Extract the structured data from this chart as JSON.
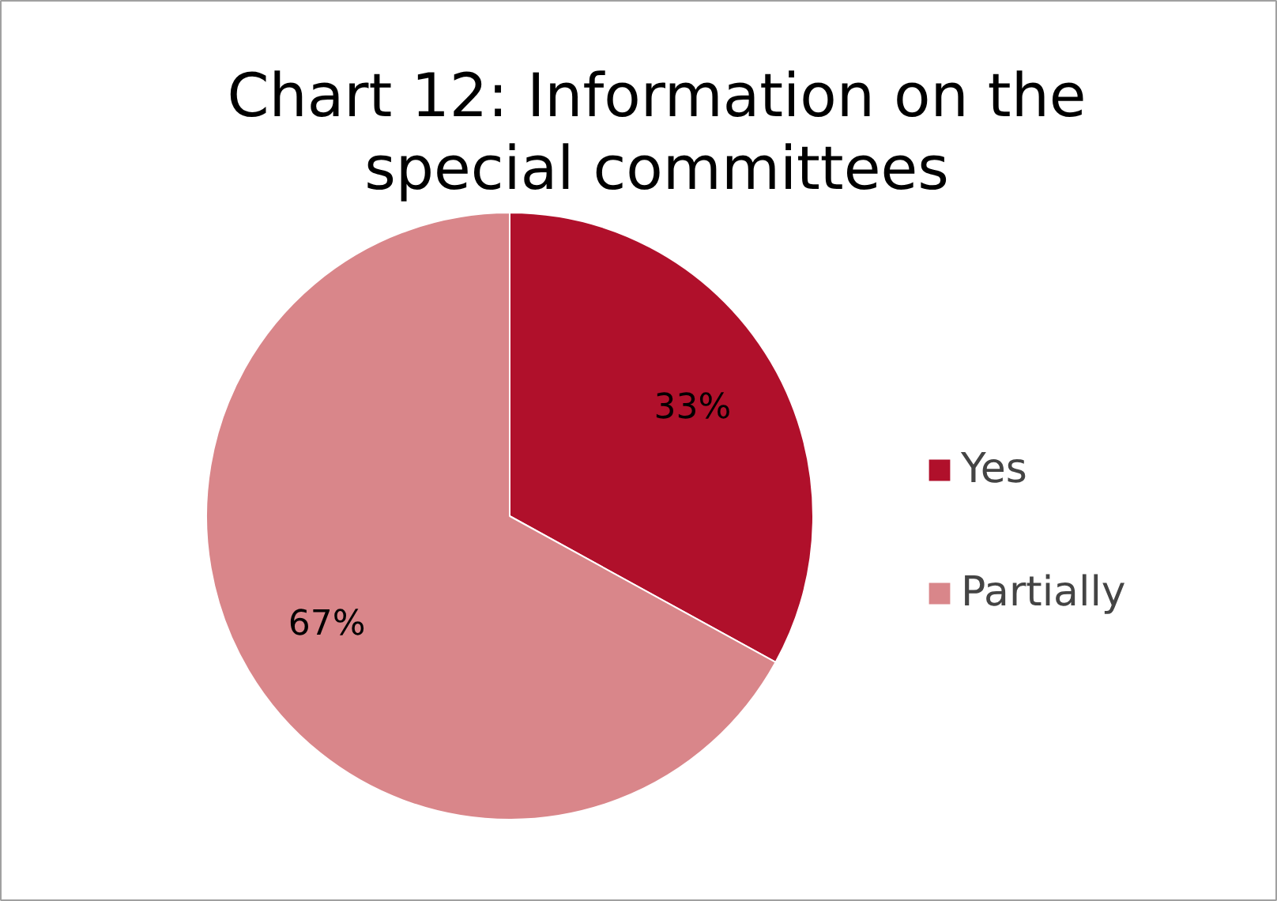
{
  "chart_data": {
    "type": "pie",
    "title": "Chart 12: Information on the special committees",
    "categories": [
      "Yes",
      "Partially"
    ],
    "values": [
      33,
      67
    ],
    "colors": [
      "#b0102b",
      "#d9868a"
    ],
    "value_labels": [
      "33%",
      "67%"
    ],
    "legend": "right"
  }
}
